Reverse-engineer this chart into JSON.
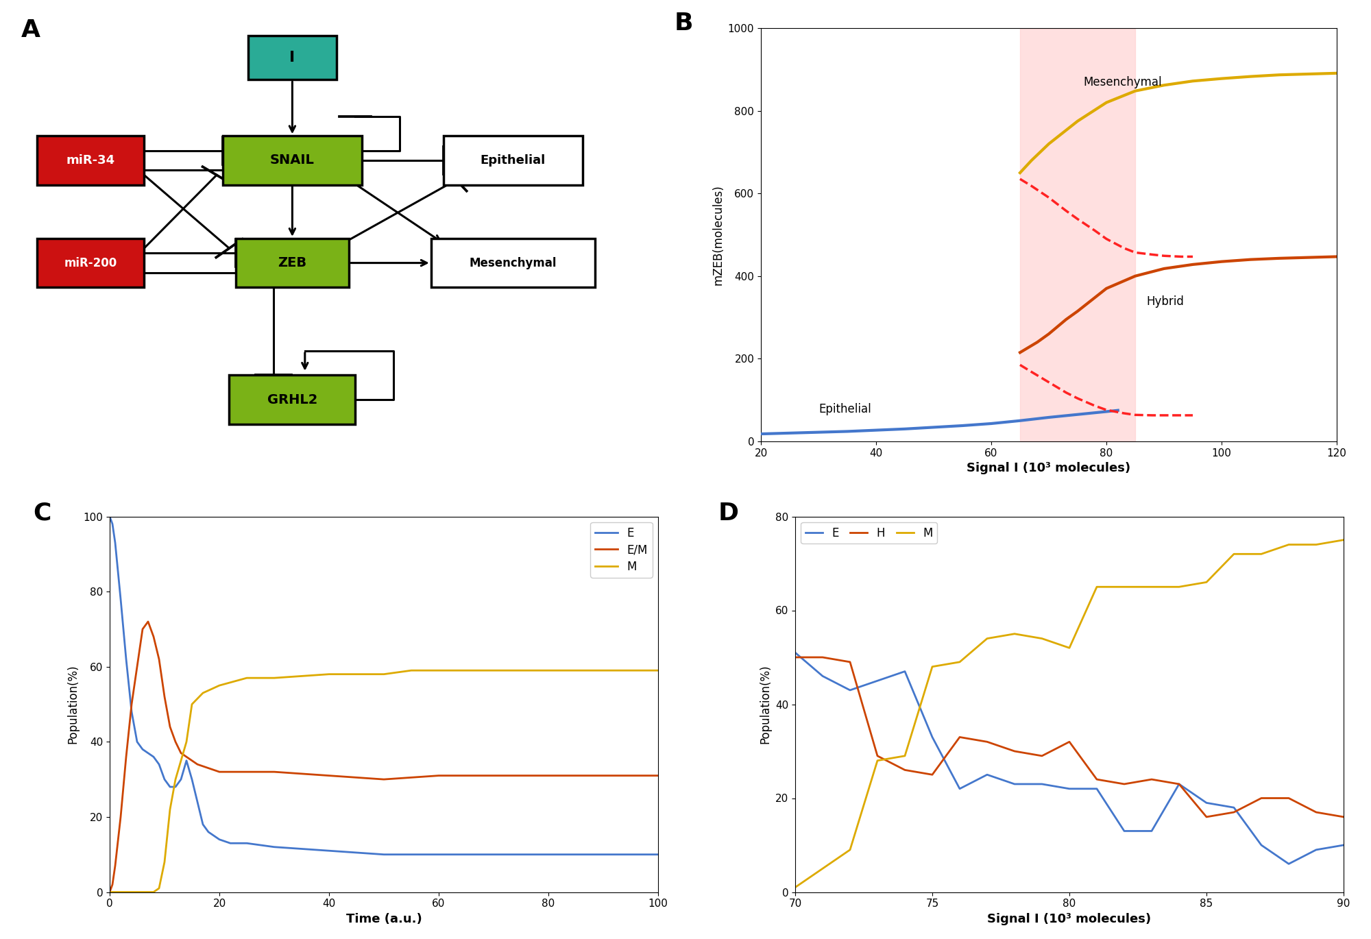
{
  "panel_B": {
    "xlim": [
      20,
      120
    ],
    "ylim": [
      0,
      1000
    ],
    "xlabel": "Signal I (10³ molecules)",
    "ylabel": "mZEB(molecules)",
    "shaded_region": [
      65,
      85
    ],
    "shaded_color": "#ffcccc",
    "epithelial_x": [
      20,
      25,
      30,
      35,
      40,
      45,
      50,
      55,
      60,
      65,
      70,
      75,
      80,
      82
    ],
    "epithelial_y": [
      18,
      20,
      22,
      24,
      27,
      30,
      34,
      38,
      43,
      50,
      58,
      65,
      72,
      75
    ],
    "mesenchymal_x": [
      65,
      67,
      70,
      75,
      80,
      85,
      90,
      95,
      100,
      105,
      110,
      115,
      120
    ],
    "mesenchymal_y": [
      650,
      680,
      720,
      775,
      820,
      848,
      862,
      872,
      878,
      883,
      887,
      889,
      891
    ],
    "hybrid_x": [
      65,
      68,
      70,
      73,
      75,
      78,
      80,
      85,
      90,
      95,
      100,
      105,
      110,
      115,
      120
    ],
    "hybrid_y": [
      215,
      240,
      260,
      295,
      315,
      348,
      370,
      400,
      418,
      428,
      435,
      440,
      443,
      445,
      447
    ],
    "unstable_x": [
      65,
      67,
      70,
      73,
      75,
      78,
      80,
      83,
      85,
      88,
      90,
      93,
      95
    ],
    "unstable_top_y": [
      635,
      618,
      590,
      558,
      538,
      510,
      490,
      468,
      457,
      452,
      449,
      447,
      447
    ],
    "unstable_bot_y": [
      185,
      168,
      143,
      118,
      104,
      86,
      76,
      68,
      64,
      63,
      63,
      63,
      63
    ],
    "label_epithelial": "Epithelial",
    "label_mesenchymal": "Mesenchymal",
    "label_hybrid": "Hybrid",
    "color_epithelial": "#4477cc",
    "color_mesenchymal": "#ddaa00",
    "color_hybrid": "#cc4400",
    "color_unstable": "#ff2222"
  },
  "panel_C": {
    "xlim": [
      0,
      100
    ],
    "ylim": [
      0,
      100
    ],
    "xlabel": "Time (a.u.)",
    "ylabel": "Population(%)",
    "E_x": [
      0,
      0.5,
      1,
      2,
      3,
      4,
      5,
      6,
      7,
      8,
      9,
      10,
      11,
      12,
      13,
      14,
      15,
      16,
      17,
      18,
      20,
      22,
      25,
      30,
      40,
      50,
      60,
      70,
      80,
      90,
      100
    ],
    "E_y": [
      100,
      98,
      93,
      78,
      62,
      48,
      40,
      38,
      37,
      36,
      34,
      30,
      28,
      28,
      30,
      35,
      30,
      24,
      18,
      16,
      14,
      13,
      13,
      12,
      11,
      10,
      10,
      10,
      10,
      10,
      10
    ],
    "EM_x": [
      0,
      0.5,
      1,
      2,
      3,
      4,
      5,
      6,
      7,
      8,
      9,
      10,
      11,
      12,
      13,
      14,
      15,
      16,
      18,
      20,
      25,
      30,
      40,
      50,
      60,
      70,
      80,
      90,
      100
    ],
    "EM_y": [
      0,
      2,
      7,
      20,
      36,
      50,
      60,
      70,
      72,
      68,
      62,
      52,
      44,
      40,
      37,
      36,
      35,
      34,
      33,
      32,
      32,
      32,
      31,
      30,
      31,
      31,
      31,
      31,
      31
    ],
    "M_x": [
      0,
      1,
      2,
      3,
      4,
      5,
      6,
      7,
      8,
      9,
      10,
      11,
      12,
      13,
      14,
      15,
      17,
      20,
      25,
      30,
      40,
      50,
      55,
      60,
      70,
      80,
      90,
      100
    ],
    "M_y": [
      0,
      0,
      0,
      0,
      0,
      0,
      0,
      0,
      0,
      1,
      8,
      22,
      30,
      35,
      40,
      50,
      53,
      55,
      57,
      57,
      58,
      58,
      59,
      59,
      59,
      59,
      59,
      59
    ],
    "color_E": "#4477cc",
    "color_EM": "#cc4400",
    "color_M": "#ddaa00"
  },
  "panel_D": {
    "xlim": [
      70,
      90
    ],
    "ylim": [
      0,
      80
    ],
    "xlabel": "Signal I (10³ molecules)",
    "ylabel": "Population(%)",
    "E_x": [
      70,
      71,
      72,
      73,
      74,
      75,
      76,
      77,
      78,
      79,
      80,
      81,
      82,
      83,
      84,
      85,
      86,
      87,
      88,
      89,
      90
    ],
    "E_y": [
      51,
      46,
      43,
      45,
      47,
      33,
      22,
      25,
      23,
      23,
      22,
      22,
      13,
      13,
      23,
      19,
      18,
      10,
      6,
      9,
      10
    ],
    "H_x": [
      70,
      71,
      72,
      73,
      74,
      75,
      76,
      77,
      78,
      79,
      80,
      81,
      82,
      83,
      84,
      85,
      86,
      87,
      88,
      89,
      90
    ],
    "H_y": [
      50,
      50,
      49,
      29,
      26,
      25,
      33,
      32,
      30,
      29,
      32,
      24,
      23,
      24,
      23,
      16,
      17,
      20,
      20,
      17,
      16
    ],
    "M_x": [
      70,
      71,
      72,
      73,
      74,
      75,
      76,
      77,
      78,
      79,
      80,
      81,
      82,
      83,
      84,
      85,
      86,
      87,
      88,
      89,
      90
    ],
    "M_y": [
      1,
      5,
      9,
      28,
      29,
      48,
      49,
      54,
      55,
      54,
      52,
      65,
      65,
      65,
      65,
      66,
      72,
      72,
      74,
      74,
      75
    ],
    "color_E": "#4477cc",
    "color_H": "#cc4400",
    "color_M": "#ddaa00"
  }
}
